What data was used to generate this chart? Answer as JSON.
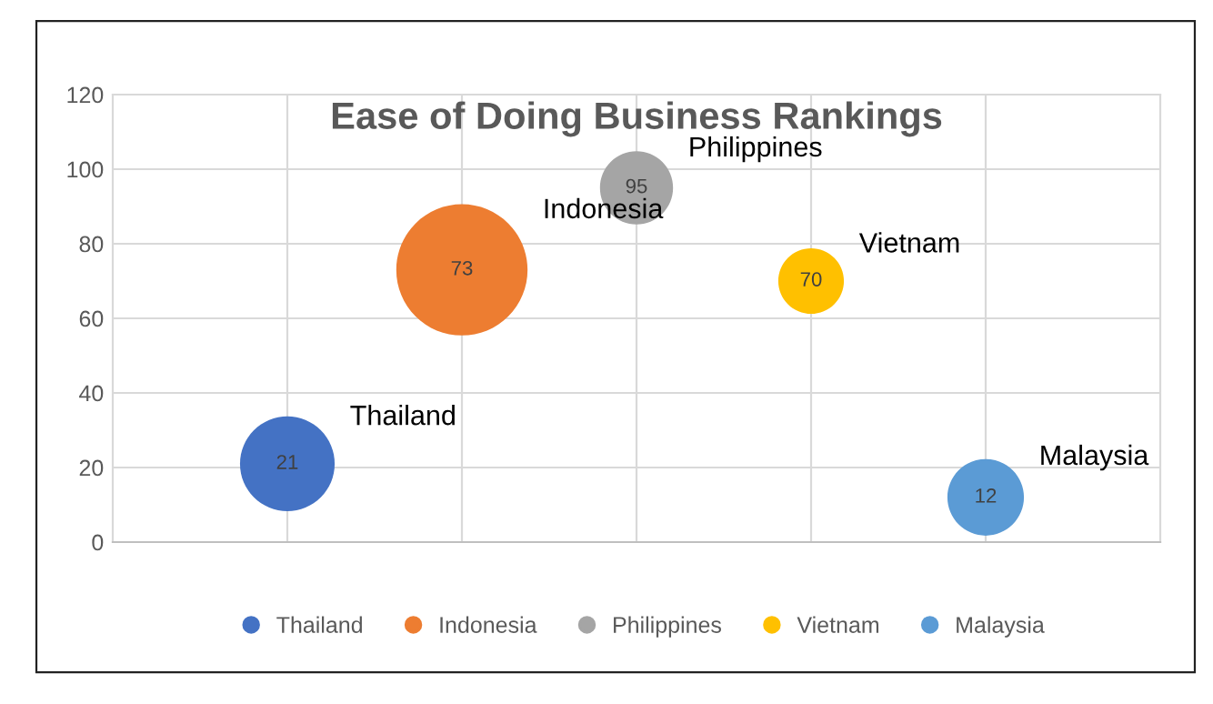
{
  "chart_data": {
    "type": "bubble",
    "title": "Ease of Doing Business Rankings",
    "categories": [
      null,
      null,
      null,
      null,
      null
    ],
    "series": [
      {
        "name": "Thailand",
        "color": "#4472c4",
        "values": [
          21,
          null,
          null,
          null,
          null
        ],
        "sizes": [
          0.52,
          null,
          null,
          null,
          null
        ]
      },
      {
        "name": "Indonesia",
        "color": "#ed7d31",
        "values": [
          null,
          73,
          null,
          null,
          null
        ],
        "sizes": [
          null,
          1,
          null,
          null,
          null
        ]
      },
      {
        "name": "Philippines",
        "color": "#a5a5a5",
        "values": [
          null,
          null,
          95,
          null,
          null
        ],
        "sizes": [
          null,
          null,
          0.31,
          null,
          null
        ]
      },
      {
        "name": "Vietnam",
        "color": "#ffc000",
        "values": [
          null,
          null,
          null,
          70,
          null
        ],
        "sizes": [
          null,
          null,
          null,
          0.25,
          null
        ]
      },
      {
        "name": "Malaysia",
        "color": "#5b9bd5",
        "values": [
          null,
          null,
          null,
          null,
          12
        ],
        "sizes": [
          null,
          null,
          null,
          null,
          0.34
        ]
      }
    ],
    "ylim": [
      0,
      120
    ],
    "yticks": [
      0,
      20,
      40,
      60,
      80,
      100,
      120
    ],
    "grid": true,
    "legend": "bottom",
    "data_labels": true
  }
}
